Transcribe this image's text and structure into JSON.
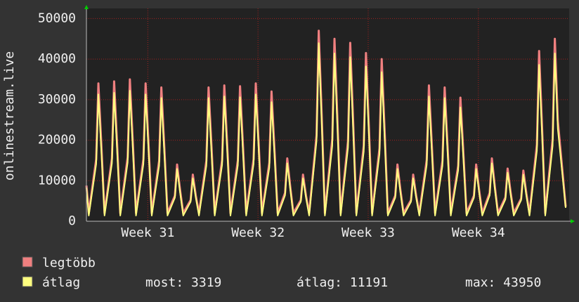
{
  "chart_data": {
    "type": "line",
    "y_label": "onlinestream.live",
    "x": [
      0,
      0.15,
      0.62,
      0.76,
      0.95,
      1.15,
      1.62,
      1.76,
      1.95,
      2.15,
      2.62,
      2.76,
      2.95,
      3.15,
      3.62,
      3.76,
      3.95,
      4.15,
      4.62,
      4.76,
      4.95,
      5.15,
      5.62,
      5.76,
      5.95,
      6.15,
      6.62,
      6.76,
      6.95,
      7.15,
      7.62,
      7.76,
      7.95,
      8.15,
      8.62,
      8.76,
      8.95,
      9.15,
      9.62,
      9.76,
      9.95,
      10.15,
      10.62,
      10.76,
      10.95,
      11.15,
      11.62,
      11.76,
      11.95,
      12.15,
      12.62,
      12.76,
      12.95,
      13.15,
      13.62,
      13.76,
      13.95,
      14.15,
      14.62,
      14.76,
      14.95,
      15.15,
      15.62,
      15.76,
      15.95,
      16.15,
      16.62,
      16.76,
      16.95,
      17.15,
      17.62,
      17.76,
      17.95,
      18.15,
      18.62,
      18.76,
      18.95,
      19.15,
      19.62,
      19.76,
      19.95,
      20.15,
      20.62,
      20.76,
      20.95,
      21.15,
      21.62,
      21.76,
      21.95,
      22.15,
      22.62,
      22.76,
      22.95,
      23.15,
      23.62,
      23.76,
      23.95,
      24.15,
      24.62,
      24.76,
      24.95,
      25.15,
      25.62,
      25.76,
      25.95,
      26.15,
      26.62,
      26.76,
      26.95,
      27.15,
      27.62,
      27.76,
      27.95,
      28.15,
      28.62,
      28.76,
      28.95,
      29.15,
      29.62,
      29.76,
      29.95,
      30.45
    ],
    "series": [
      {
        "name": "legtöbb",
        "color": "#f08080",
        "values": [
          8800,
          2000,
          15300,
          34000,
          18700,
          2000,
          15500,
          34500,
          19000,
          2000,
          15800,
          35000,
          19300,
          2000,
          15300,
          34000,
          18700,
          2000,
          14900,
          33000,
          18200,
          2000,
          6300,
          14000,
          7700,
          2000,
          5200,
          11500,
          6300,
          2000,
          14900,
          33000,
          18200,
          2000,
          15100,
          33500,
          18400,
          2000,
          15000,
          33300,
          18300,
          2000,
          15300,
          34000,
          18700,
          2000,
          14400,
          32000,
          17600,
          2000,
          7000,
          15500,
          8500,
          2000,
          5200,
          11500,
          6300,
          2000,
          21200,
          47000,
          25900,
          2000,
          20300,
          45000,
          24800,
          2000,
          19800,
          44000,
          24200,
          2000,
          18700,
          41500,
          22800,
          2000,
          18000,
          40000,
          22000,
          2000,
          6300,
          14000,
          7700,
          2000,
          5200,
          11500,
          6300,
          2000,
          15100,
          33500,
          18400,
          2000,
          14900,
          33000,
          18200,
          2000,
          13700,
          30500,
          16800,
          2000,
          6300,
          14000,
          7700,
          2000,
          7000,
          15500,
          8500,
          2000,
          5900,
          13000,
          7200,
          2000,
          5600,
          12500,
          6900,
          2000,
          18900,
          42000,
          23100,
          2000,
          20300,
          45000,
          24800,
          3600
        ]
      },
      {
        "name": "átlag",
        "color": "#ffff80",
        "values": [
          8300,
          1400,
          14100,
          31300,
          17200,
          1400,
          14300,
          31700,
          17400,
          1400,
          14500,
          32200,
          17700,
          1400,
          14100,
          31300,
          17200,
          1400,
          13700,
          30400,
          16700,
          1400,
          5800,
          12900,
          7100,
          1400,
          4800,
          10600,
          5800,
          1400,
          13700,
          30400,
          16700,
          1400,
          13900,
          30800,
          16900,
          1400,
          13800,
          30600,
          16800,
          1400,
          14100,
          31300,
          17200,
          1400,
          13200,
          29400,
          16200,
          1400,
          6400,
          14300,
          7900,
          1400,
          4800,
          10600,
          5800,
          1400,
          19800,
          43950,
          24200,
          1400,
          18600,
          41400,
          22800,
          1400,
          18200,
          40500,
          22300,
          1400,
          17200,
          38200,
          21000,
          1400,
          16600,
          36800,
          20200,
          1400,
          5800,
          12900,
          7100,
          1400,
          4800,
          10600,
          5800,
          1400,
          13900,
          30800,
          16900,
          1400,
          13700,
          30400,
          16700,
          1400,
          12600,
          28100,
          15500,
          1400,
          5800,
          12900,
          7100,
          1400,
          6400,
          14300,
          7900,
          1400,
          5400,
          12000,
          6600,
          1400,
          5200,
          11500,
          6300,
          1400,
          17400,
          38600,
          21200,
          1400,
          18600,
          41400,
          22800,
          3319
        ]
      }
    ],
    "stats": [
      "most: 3319",
      "átlag: 11191",
      "max: 43950"
    ],
    "xlim": [
      0,
      30.67
    ],
    "xticks": [
      {
        "value": 3.9,
        "label": "Week 31"
      },
      {
        "value": 10.9,
        "label": "Week 32"
      },
      {
        "value": 17.9,
        "label": "Week 33"
      },
      {
        "value": 24.9,
        "label": "Week 34"
      }
    ],
    "ylim": [
      0,
      52500
    ],
    "yticks": [
      0,
      10000,
      20000,
      30000,
      40000,
      50000
    ],
    "grid": true
  }
}
